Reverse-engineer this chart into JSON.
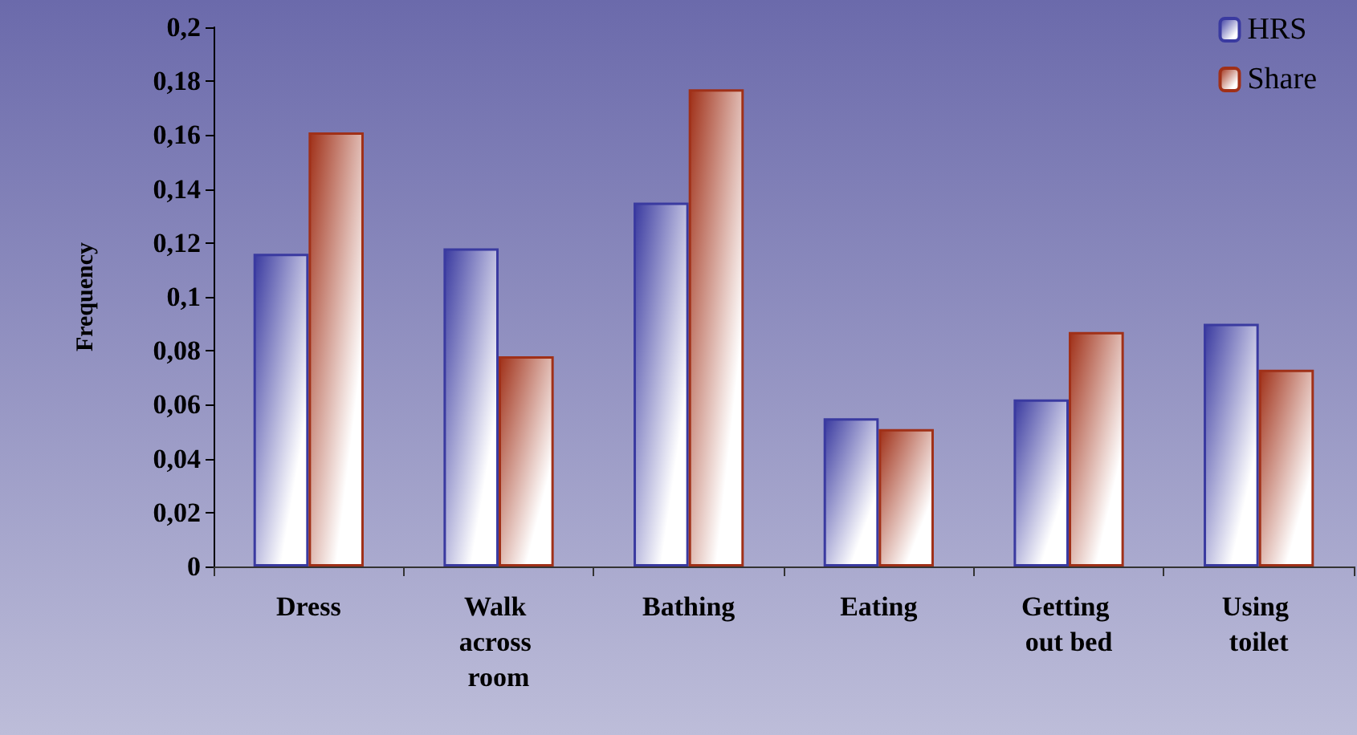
{
  "chart_data": {
    "type": "bar",
    "ylabel": "Frequency",
    "categories": [
      "Dress",
      "Walk across room",
      "Bathing",
      "Eating",
      "Getting out bed",
      "Using toilet"
    ],
    "series": [
      {
        "name": "HRS",
        "color": "#3a3aa0",
        "values": [
          0.116,
          0.118,
          0.135,
          0.055,
          0.062,
          0.09
        ]
      },
      {
        "name": "Share",
        "color": "#a03018",
        "values": [
          0.161,
          0.078,
          0.177,
          0.051,
          0.087,
          0.073
        ]
      }
    ],
    "ylim": [
      0,
      0.2
    ],
    "yticks": [
      0,
      {
        "value": 0.02,
        "label": "0,02"
      },
      {
        "value": 0.04,
        "label": "0,04"
      },
      {
        "value": 0.06,
        "label": "0,06"
      },
      {
        "value": 0.08,
        "label": "0,08"
      },
      {
        "value": 0.1,
        "label": "0,1"
      },
      {
        "value": 0.12,
        "label": "0,12"
      },
      {
        "value": 0.14,
        "label": "0,14"
      },
      {
        "value": 0.16,
        "label": "0,16"
      },
      {
        "value": 0.18,
        "label": "0,18"
      },
      {
        "value": 0.2,
        "label": "0,2"
      }
    ],
    "grid": false,
    "legend": "top right"
  }
}
